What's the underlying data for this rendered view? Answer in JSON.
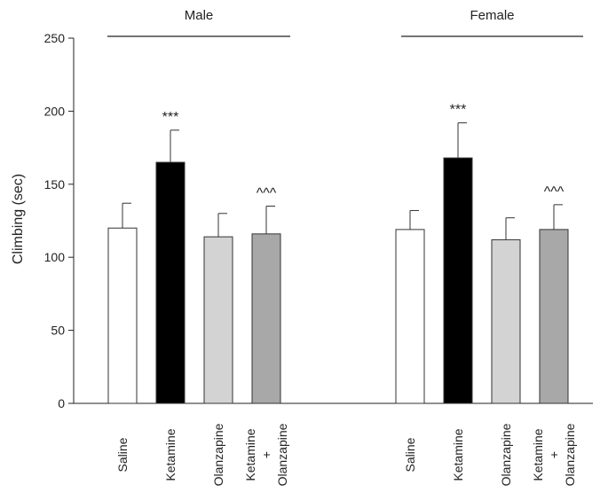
{
  "chart_data": {
    "type": "bar",
    "title": "",
    "xlabel": "",
    "ylabel": "Climbing (sec)",
    "ylim": [
      0,
      250
    ],
    "yticks": [
      0,
      50,
      100,
      150,
      200,
      250
    ],
    "grid": false,
    "error_bars": "upper",
    "groups": [
      {
        "name": "Male",
        "bars": [
          {
            "label": [
              "Saline"
            ],
            "value": 120,
            "error": 17,
            "color": "#ffffff",
            "annotation": ""
          },
          {
            "label": [
              "Ketamine"
            ],
            "value": 165,
            "error": 22,
            "color": "#000000",
            "annotation": "***"
          },
          {
            "label": [
              "Olanzapine"
            ],
            "value": 114,
            "error": 16,
            "color": "#d3d3d3",
            "annotation": ""
          },
          {
            "label": [
              "Ketamine",
              "+",
              "Olanzapine"
            ],
            "value": 116,
            "error": 19,
            "color": "#a8a8a8",
            "annotation": "^^^"
          }
        ]
      },
      {
        "name": "Female",
        "bars": [
          {
            "label": [
              "Saline"
            ],
            "value": 119,
            "error": 13,
            "color": "#ffffff",
            "annotation": ""
          },
          {
            "label": [
              "Ketamine"
            ],
            "value": 168,
            "error": 24,
            "color": "#000000",
            "annotation": "***"
          },
          {
            "label": [
              "Olanzapine"
            ],
            "value": 112,
            "error": 15,
            "color": "#d3d3d3",
            "annotation": ""
          },
          {
            "label": [
              "Ketamine",
              "+",
              "Olanzapine"
            ],
            "value": 119,
            "error": 17,
            "color": "#a8a8a8",
            "annotation": "^^^"
          }
        ]
      }
    ]
  }
}
